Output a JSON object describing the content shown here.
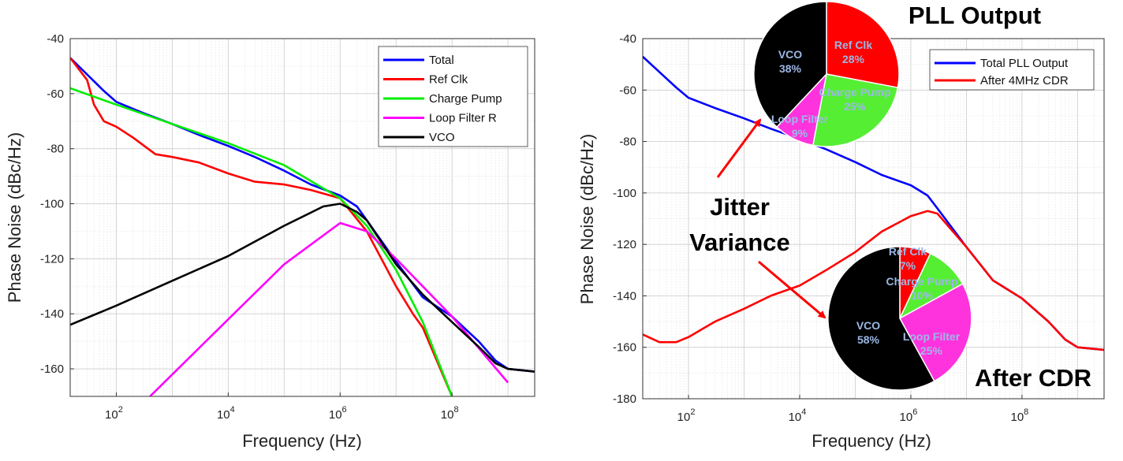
{
  "chart_data": [
    {
      "type": "line",
      "title": "",
      "xlabel": "Frequency (Hz)",
      "ylabel": "Phase Noise (dBc/Hz)",
      "xscale": "log",
      "xlim": [
        15,
        3000000000
      ],
      "ylim": [
        -170,
        -40
      ],
      "yticks": [
        -40,
        -60,
        -80,
        -100,
        -120,
        -140,
        -160
      ],
      "xticks": [
        {
          "value": 100,
          "base": "10",
          "exp": "2"
        },
        {
          "value": 10000,
          "base": "10",
          "exp": "4"
        },
        {
          "value": 1000000,
          "base": "10",
          "exp": "6"
        },
        {
          "value": 100000000,
          "base": "10",
          "exp": "8"
        }
      ],
      "grid": true,
      "legend_position": "top-right",
      "series": [
        {
          "name": "Total",
          "color": "#0000ff",
          "x": [
            15,
            30,
            60,
            100,
            300,
            1000,
            3000,
            10000,
            30000,
            100000,
            300000,
            1000000,
            2000000,
            3000000,
            10000000,
            30000000,
            100000000,
            300000000,
            600000000,
            1000000000,
            3000000000
          ],
          "y": [
            -47,
            -53,
            -59,
            -63,
            -67,
            -71,
            -75,
            -79,
            -83,
            -88,
            -93,
            -97,
            -101,
            -106,
            -121,
            -134,
            -141,
            -150,
            -157,
            -160,
            -161
          ]
        },
        {
          "name": "Ref Clk",
          "color": "#ff0000",
          "x": [
            15,
            30,
            40,
            60,
            100,
            200,
            500,
            1000,
            3000,
            10000,
            30000,
            100000,
            300000,
            1000000,
            3000000,
            10000000,
            20000000,
            30000000,
            100000000
          ],
          "y": [
            -47,
            -55,
            -64,
            -70,
            -72,
            -76,
            -82,
            -83,
            -85,
            -89,
            -92,
            -93,
            -95,
            -98,
            -110,
            -130,
            -140,
            -145,
            -170
          ]
        },
        {
          "name": "Charge Pump",
          "color": "#00ee00",
          "x": [
            15,
            100,
            1000,
            10000,
            100000,
            1000000,
            3000000,
            10000000,
            30000000,
            100000000
          ],
          "y": [
            -58,
            -64,
            -71,
            -78,
            -86,
            -98,
            -108,
            -124,
            -143,
            -170
          ]
        },
        {
          "name": "Loop Filter R",
          "color": "#ff00ff",
          "x": [
            400,
            10000,
            100000,
            1000000,
            3000000,
            10000000,
            100000000,
            1000000000
          ],
          "y": [
            -170,
            -142,
            -122,
            -107,
            -110,
            -120,
            -141,
            -165
          ]
        },
        {
          "name": "VCO",
          "color": "#000000",
          "x": [
            15,
            100,
            1000,
            10000,
            100000,
            500000,
            1000000,
            2000000,
            3000000,
            10000000,
            30000000,
            100000000,
            300000000,
            600000000,
            1000000000,
            3000000000
          ],
          "y": [
            -144,
            -137,
            -128,
            -119,
            -108,
            -101,
            -100,
            -103,
            -106,
            -122,
            -133,
            -143,
            -152,
            -158,
            -160,
            -161
          ]
        }
      ]
    },
    {
      "type": "line",
      "title": "",
      "xlabel": "Frequency (Hz)",
      "ylabel": "Phase Noise (dBc/Hz)",
      "xscale": "log",
      "xlim": [
        15,
        3000000000
      ],
      "ylim": [
        -180,
        -40
      ],
      "yticks": [
        -40,
        -60,
        -80,
        -100,
        -120,
        -140,
        -160,
        -180
      ],
      "xticks": [
        {
          "value": 100,
          "base": "10",
          "exp": "2"
        },
        {
          "value": 10000,
          "base": "10",
          "exp": "4"
        },
        {
          "value": 1000000,
          "base": "10",
          "exp": "6"
        },
        {
          "value": 100000000,
          "base": "10",
          "exp": "8"
        }
      ],
      "grid": true,
      "legend_position": "top-right",
      "series": [
        {
          "name": "Total PLL Output",
          "color": "#0000ff",
          "x": [
            15,
            30,
            60,
            100,
            300,
            1000,
            3000,
            10000,
            30000,
            100000,
            300000,
            1000000,
            2000000,
            3000000,
            10000000,
            30000000,
            100000000,
            300000000,
            600000000,
            1000000000,
            3000000000
          ],
          "y": [
            -47,
            -53,
            -59,
            -63,
            -67,
            -71,
            -75,
            -79,
            -83,
            -88,
            -93,
            -97,
            -101,
            -106,
            -121,
            -134,
            -141,
            -150,
            -157,
            -160,
            -161
          ]
        },
        {
          "name": "After 4MHz CDR",
          "color": "#ff0000",
          "x": [
            15,
            30,
            60,
            100,
            300,
            1000,
            3000,
            10000,
            30000,
            100000,
            300000,
            1000000,
            2000000,
            3000000,
            10000000,
            30000000,
            100000000,
            300000000,
            600000000,
            1000000000,
            3000000000
          ],
          "y": [
            -155,
            -158,
            -158,
            -156,
            -150,
            -145,
            -140,
            -136,
            -130,
            -123,
            -115,
            -109,
            -107,
            -108,
            -121,
            -134,
            -141,
            -150,
            -157,
            -160,
            -161
          ]
        }
      ]
    }
  ],
  "pies": [
    {
      "title": "PLL Output",
      "slices": [
        {
          "label": "Ref Clk",
          "pct": "28%",
          "value": 28,
          "color": "#ff0000"
        },
        {
          "label": "Charge Pump",
          "pct": "25%",
          "value": 25,
          "color": "#55ee33"
        },
        {
          "label": "Loop Filter",
          "pct": "9%",
          "value": 9,
          "color": "#ff33dd"
        },
        {
          "label": "VCO",
          "pct": "38%",
          "value": 38,
          "color": "#000000"
        }
      ]
    },
    {
      "title": "After CDR",
      "slices": [
        {
          "label": "Ref Clk",
          "pct": "7%",
          "value": 7,
          "color": "#ff0000"
        },
        {
          "label": "Charge Pump",
          "pct": "10%",
          "value": 10,
          "color": "#55ee33"
        },
        {
          "label": "Loop Filter",
          "pct": "25%",
          "value": 25,
          "color": "#ff33dd"
        },
        {
          "label": "VCO",
          "pct": "58%",
          "value": 58,
          "color": "#000000"
        }
      ]
    }
  ],
  "annotation": {
    "line1": "Jitter",
    "line2": "Variance",
    "arrow_color": "#ff0000"
  }
}
